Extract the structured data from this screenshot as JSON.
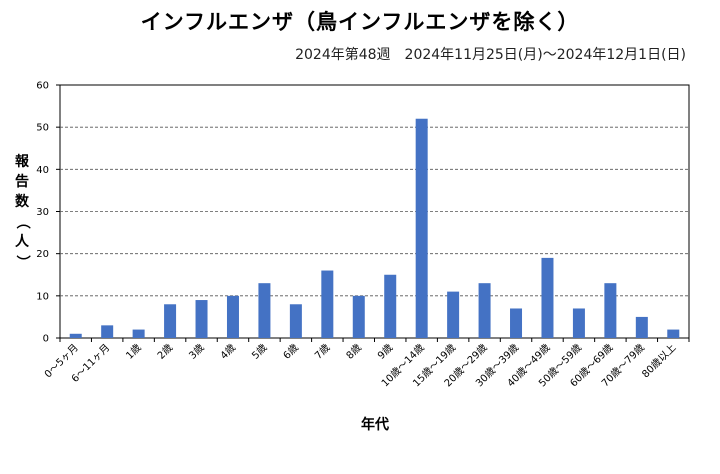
{
  "chart_data": {
    "type": "bar",
    "title": "インフルエンザ（鳥インフルエンザを除く）",
    "subtitle": "2024年第48週　2024年11月25日(月)～2024年12月1日(日)",
    "xlabel": "年代",
    "ylabel": "報告数（人）",
    "ylim": [
      0,
      60
    ],
    "yticks": [
      0,
      10,
      20,
      30,
      40,
      50,
      60
    ],
    "grid": true,
    "categories": [
      "0～5ヶ月",
      "6～11ヶ月",
      "1歳",
      "2歳",
      "3歳",
      "4歳",
      "5歳",
      "6歳",
      "7歳",
      "8歳",
      "9歳",
      "10歳～14歳",
      "15歳～19歳",
      "20歳～29歳",
      "30歳～39歳",
      "40歳～49歳",
      "50歳～59歳",
      "60歳～69歳",
      "70歳～79歳",
      "80歳以上"
    ],
    "values": [
      1,
      3,
      2,
      8,
      9,
      10,
      13,
      8,
      16,
      10,
      15,
      52,
      11,
      13,
      7,
      19,
      7,
      13,
      5,
      2
    ],
    "bar_color": "#4472c4"
  }
}
